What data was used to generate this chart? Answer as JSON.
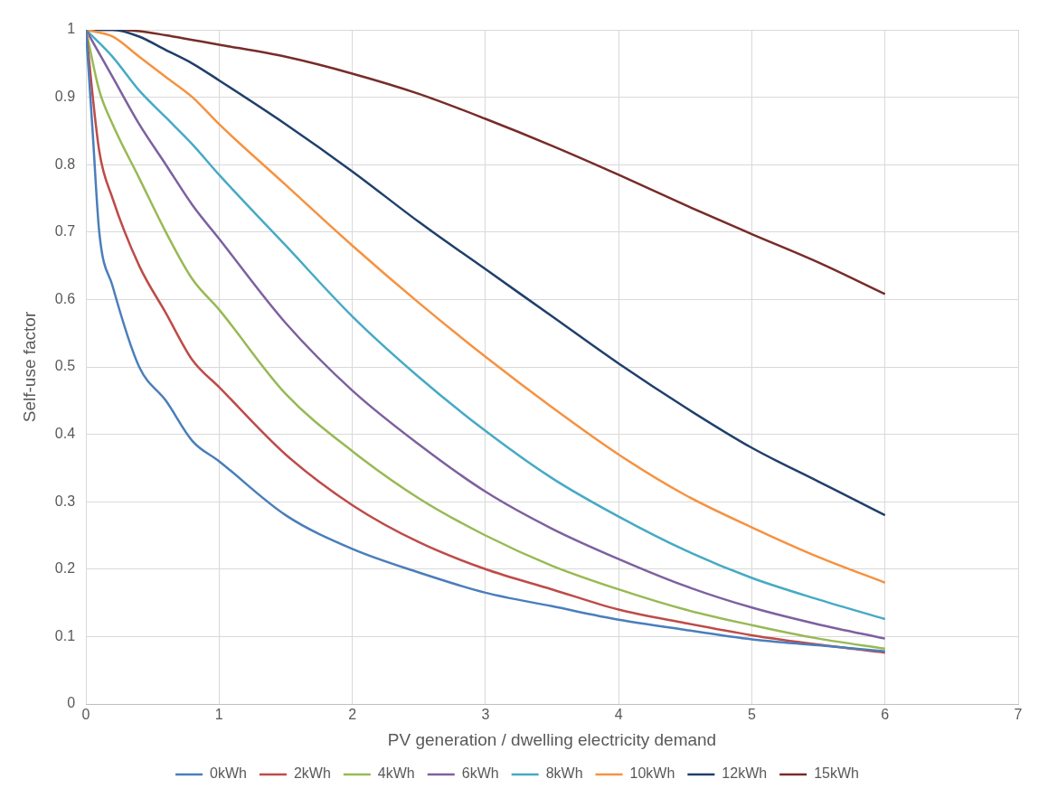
{
  "chart_data": {
    "type": "line",
    "xlabel": "PV generation / dwelling electricity demand",
    "ylabel": "Self-use factor",
    "xlim": [
      0,
      7
    ],
    "xticks": [
      0,
      1,
      2,
      3,
      4,
      5,
      6,
      7
    ],
    "ylim": [
      0,
      1
    ],
    "yticks": [
      0,
      0.1,
      0.2,
      0.3,
      0.4,
      0.5,
      0.6,
      0.7,
      0.8,
      0.9,
      1
    ],
    "grid": true,
    "legend": "bottom",
    "marker": "none",
    "line_style": "solid",
    "series": [
      {
        "name": "0kWh",
        "color": "#4a7ebb",
        "x": [
          0,
          0.05,
          0.1,
          0.2,
          0.4,
          0.6,
          0.8,
          1,
          1.5,
          2,
          2.5,
          3,
          3.5,
          4,
          4.5,
          5,
          5.5,
          6
        ],
        "values": [
          1,
          0.85,
          0.7,
          0.62,
          0.5,
          0.45,
          0.39,
          0.36,
          0.28,
          0.23,
          0.195,
          0.165,
          0.145,
          0.125,
          0.11,
          0.096,
          0.087,
          0.078
        ]
      },
      {
        "name": "2kWh",
        "color": "#be4b48",
        "x": [
          0,
          0.1,
          0.2,
          0.4,
          0.6,
          0.8,
          1,
          1.5,
          2,
          2.5,
          3,
          3.5,
          4,
          4.5,
          5,
          5.5,
          6
        ],
        "values": [
          1,
          0.82,
          0.75,
          0.65,
          0.58,
          0.51,
          0.47,
          0.37,
          0.295,
          0.24,
          0.2,
          0.17,
          0.14,
          0.12,
          0.102,
          0.088,
          0.076
        ]
      },
      {
        "name": "4kWh",
        "color": "#98b954",
        "x": [
          0,
          0.1,
          0.2,
          0.4,
          0.6,
          0.8,
          1,
          1.5,
          2,
          2.5,
          3,
          3.5,
          4,
          4.5,
          5,
          5.5,
          6
        ],
        "values": [
          1,
          0.91,
          0.86,
          0.78,
          0.7,
          0.63,
          0.585,
          0.46,
          0.375,
          0.305,
          0.25,
          0.205,
          0.17,
          0.14,
          0.117,
          0.097,
          0.082
        ]
      },
      {
        "name": "6kWh",
        "color": "#7d60a0",
        "x": [
          0,
          0.2,
          0.4,
          0.6,
          0.8,
          1,
          1.5,
          2,
          2.5,
          3,
          3.5,
          4,
          4.5,
          5,
          5.5,
          6
        ],
        "values": [
          1,
          0.93,
          0.86,
          0.8,
          0.74,
          0.69,
          0.565,
          0.465,
          0.385,
          0.315,
          0.26,
          0.215,
          0.175,
          0.143,
          0.118,
          0.097
        ]
      },
      {
        "name": "8kWh",
        "color": "#46aac5",
        "x": [
          0,
          0.2,
          0.4,
          0.6,
          0.8,
          1,
          1.5,
          2,
          2.5,
          3,
          3.5,
          4,
          4.5,
          5,
          5.5,
          6
        ],
        "values": [
          1,
          0.96,
          0.91,
          0.87,
          0.83,
          0.785,
          0.68,
          0.575,
          0.485,
          0.405,
          0.335,
          0.278,
          0.228,
          0.187,
          0.155,
          0.126
        ]
      },
      {
        "name": "10kWh",
        "color": "#f69240",
        "x": [
          0,
          0.2,
          0.4,
          0.6,
          0.8,
          1,
          1.5,
          2,
          2.5,
          3,
          3.5,
          4,
          4.5,
          5,
          5.5,
          6
        ],
        "values": [
          1,
          0.99,
          0.96,
          0.93,
          0.9,
          0.86,
          0.77,
          0.68,
          0.595,
          0.515,
          0.44,
          0.37,
          0.31,
          0.262,
          0.218,
          0.18
        ]
      },
      {
        "name": "12kWh",
        "color": "#203f6b",
        "x": [
          0,
          0.2,
          0.4,
          0.6,
          0.8,
          1,
          1.5,
          2,
          2.5,
          3,
          3.5,
          4,
          4.5,
          5,
          5.5,
          6
        ],
        "values": [
          1,
          1,
          0.99,
          0.97,
          0.95,
          0.925,
          0.86,
          0.79,
          0.715,
          0.645,
          0.575,
          0.505,
          0.44,
          0.38,
          0.33,
          0.28
        ]
      },
      {
        "name": "15kWh",
        "color": "#772c2a",
        "x": [
          0,
          0.2,
          0.4,
          0.6,
          0.8,
          1,
          1.5,
          2,
          2.5,
          3,
          3.5,
          4,
          4.5,
          5,
          5.5,
          6
        ],
        "values": [
          1,
          1,
          0.998,
          0.992,
          0.985,
          0.978,
          0.96,
          0.935,
          0.905,
          0.868,
          0.828,
          0.785,
          0.74,
          0.697,
          0.655,
          0.608
        ]
      }
    ]
  }
}
